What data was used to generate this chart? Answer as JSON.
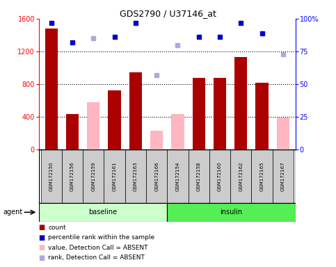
{
  "title": "GDS2790 / U37146_at",
  "samples": [
    "GSM172150",
    "GSM172156",
    "GSM172159",
    "GSM172161",
    "GSM172163",
    "GSM172166",
    "GSM172154",
    "GSM172158",
    "GSM172160",
    "GSM172162",
    "GSM172165",
    "GSM172167"
  ],
  "baseline_count": 6,
  "insulin_count": 6,
  "bar_values": [
    1480,
    430,
    null,
    720,
    940,
    null,
    null,
    880,
    880,
    1130,
    820,
    null
  ],
  "absent_bar_values": [
    null,
    null,
    580,
    null,
    null,
    230,
    430,
    null,
    null,
    null,
    null,
    390
  ],
  "percentile_present": [
    97,
    82,
    null,
    86,
    97,
    null,
    null,
    86,
    86,
    97,
    89,
    null
  ],
  "percentile_absent": [
    null,
    null,
    85,
    null,
    null,
    57,
    80,
    null,
    null,
    null,
    null,
    73
  ],
  "ylim": [
    0,
    1600
  ],
  "yticks": [
    0,
    400,
    800,
    1200,
    1600
  ],
  "y2lim": [
    0,
    100
  ],
  "y2ticks": [
    0,
    25,
    50,
    75,
    100
  ],
  "bar_color_present": "#AA0000",
  "bar_color_absent": "#FFB6C1",
  "dot_color_present": "#0000CC",
  "dot_color_absent": "#AAAADD",
  "baseline_bg": "#CCFFCC",
  "insulin_bg": "#55EE55",
  "sample_bg": "#CCCCCC",
  "agent_label": "agent",
  "baseline_label": "baseline",
  "insulin_label": "insulin",
  "legend_items": [
    {
      "color": "#AA0000",
      "label": "count"
    },
    {
      "color": "#0000CC",
      "label": "percentile rank within the sample"
    },
    {
      "color": "#FFB6C1",
      "label": "value, Detection Call = ABSENT"
    },
    {
      "color": "#AAAADD",
      "label": "rank, Detection Call = ABSENT"
    }
  ]
}
